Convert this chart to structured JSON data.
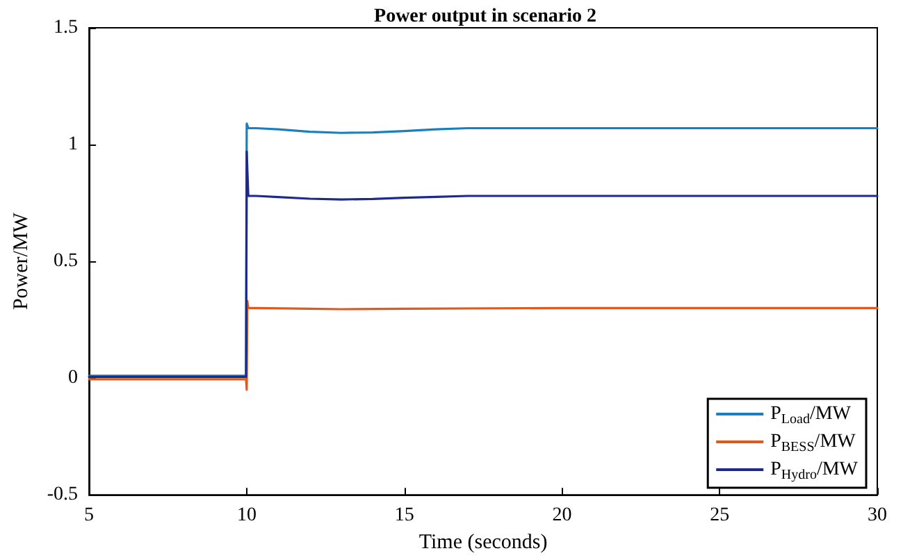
{
  "chart_data": {
    "type": "line",
    "title": "Power output in scenario 2",
    "xlabel": "Time (seconds)",
    "ylabel": "Power/MW",
    "xlim": [
      5,
      30
    ],
    "xticks": [
      5,
      10,
      15,
      20,
      25,
      30
    ],
    "ylim": [
      -0.5,
      1.5
    ],
    "yticks": [
      -0.5,
      0,
      0.5,
      1,
      1.5
    ],
    "grid": false,
    "legend": "bottom right",
    "marker": "none",
    "line_style": "solid",
    "series": [
      {
        "name": "P$_{Load}$/MW",
        "color": "#1a7fc1",
        "x": [
          5,
          9.98,
          10,
          10.05,
          10.3,
          11,
          12,
          13,
          14,
          15,
          16,
          17,
          18,
          20,
          25,
          30
        ],
        "values": [
          0.01,
          0.01,
          1.09,
          1.07,
          1.07,
          1.065,
          1.055,
          1.05,
          1.052,
          1.058,
          1.065,
          1.07,
          1.07,
          1.07,
          1.07,
          1.07
        ]
      },
      {
        "name": "P$_{BESS}$/MW",
        "color": "#e05a1e",
        "x": [
          5,
          9.98,
          10,
          10.02,
          10.05,
          10.3,
          12,
          13,
          15,
          20,
          25,
          30
        ],
        "values": [
          -0.005,
          -0.005,
          -0.05,
          0.33,
          0.3,
          0.3,
          0.297,
          0.295,
          0.297,
          0.3,
          0.3,
          0.3
        ]
      },
      {
        "name": "P$_{Hydro}$/MW",
        "color": "#1c2a8f",
        "x": [
          5,
          9.98,
          10,
          10.05,
          10.3,
          11,
          12,
          13,
          14,
          15,
          16,
          17,
          18,
          20,
          25,
          30
        ],
        "values": [
          0.005,
          0.005,
          0.97,
          0.78,
          0.78,
          0.775,
          0.768,
          0.765,
          0.767,
          0.772,
          0.776,
          0.78,
          0.78,
          0.78,
          0.78,
          0.78
        ]
      }
    ]
  }
}
